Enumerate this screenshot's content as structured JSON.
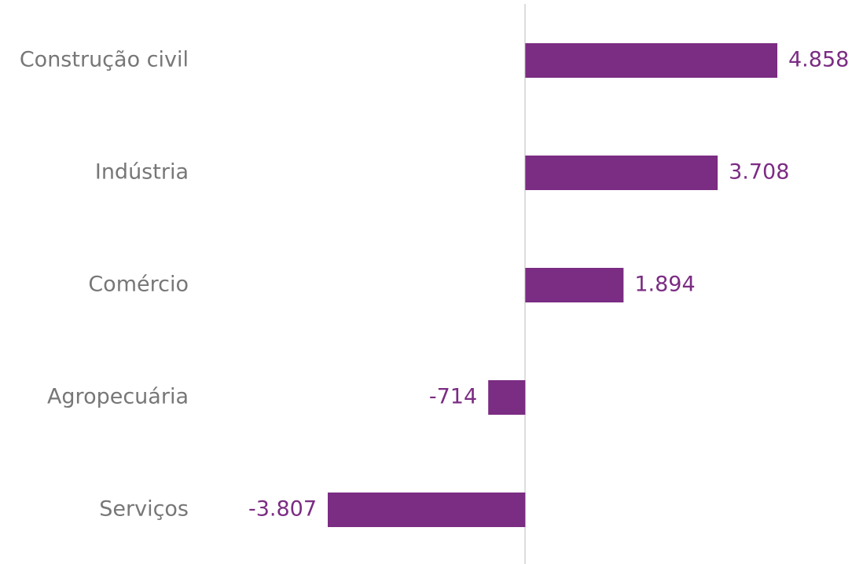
{
  "chart_data": {
    "type": "bar",
    "orientation": "horizontal",
    "categories": [
      "Construção civil",
      "Indústria",
      "Comércio",
      "Agropecuária",
      "Serviços"
    ],
    "values": [
      4858,
      3708,
      1894,
      -714,
      -3807
    ],
    "value_labels": [
      "4.858",
      "3.708",
      "1.894",
      "-714",
      "-3.807"
    ],
    "color": "#7b2c83"
  }
}
